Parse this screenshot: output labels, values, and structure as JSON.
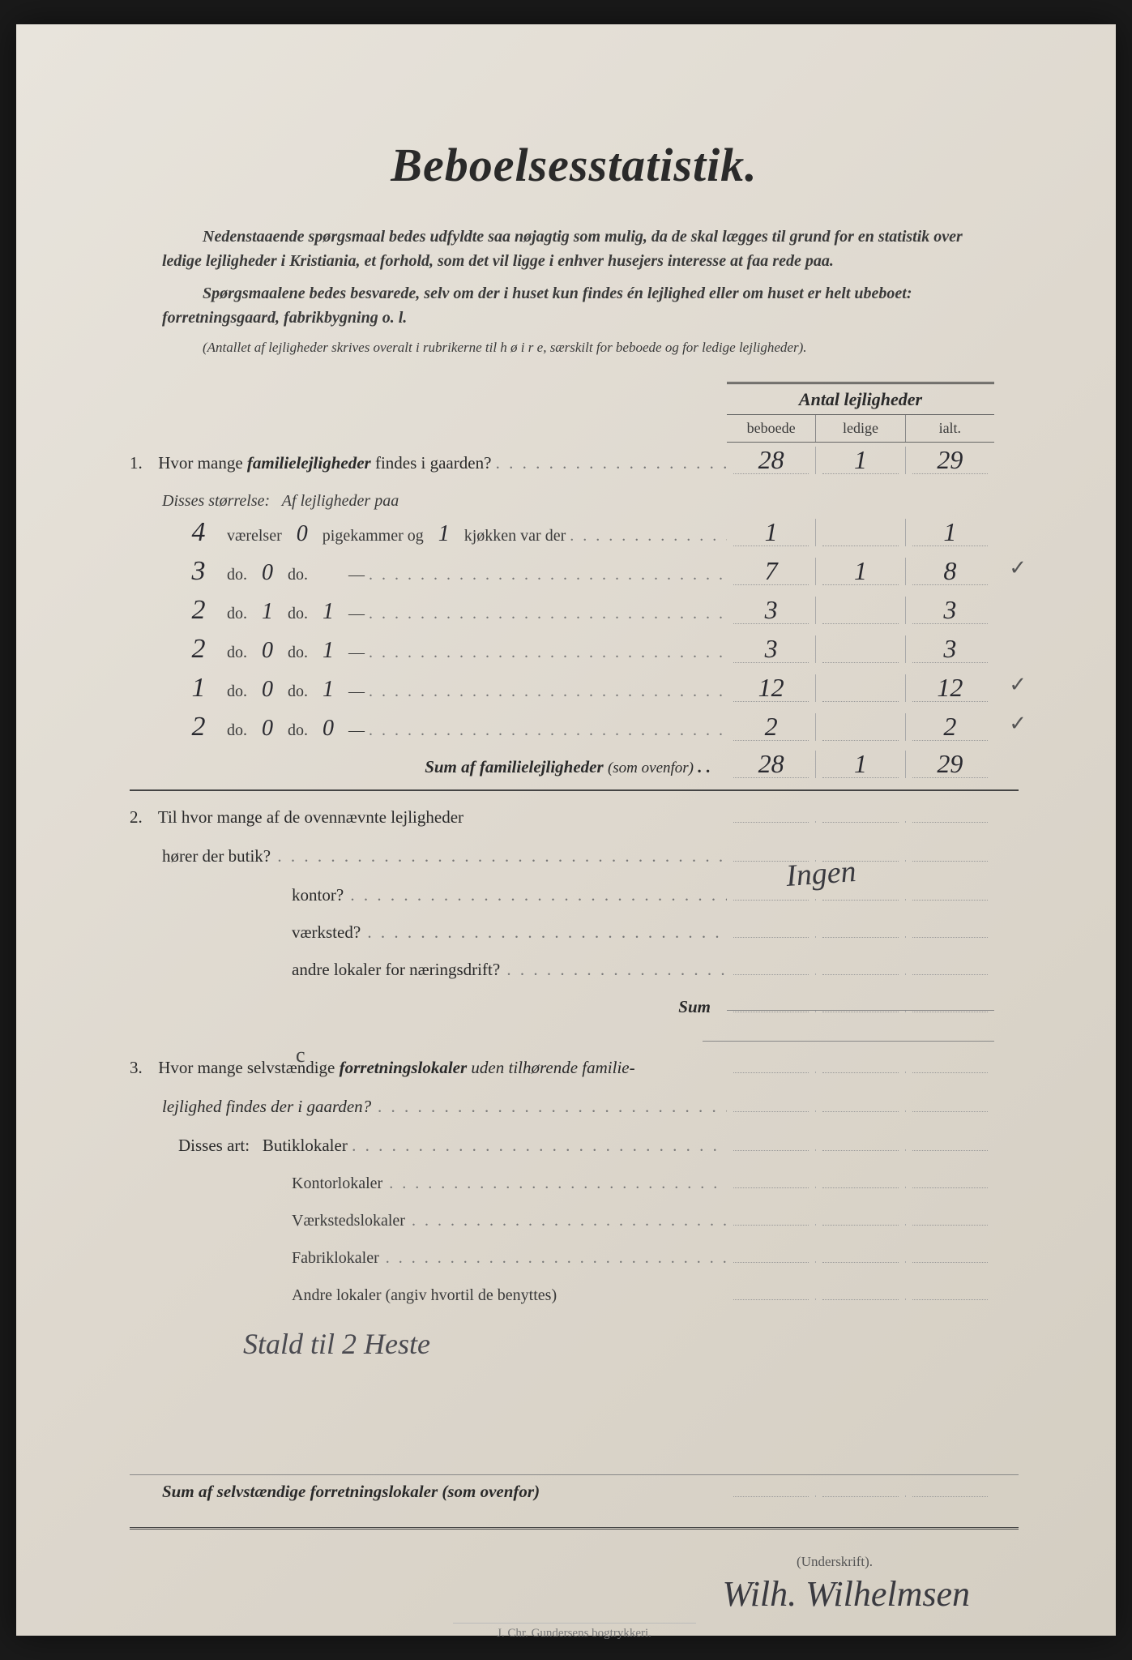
{
  "title": "Beboelsesstatistik.",
  "intro1": "Nedenstaaende spørgsmaal bedes udfyldte saa nøjagtig som mulig, da de skal lægges til grund for en statistik over ledige lejligheder i Kristiania, et forhold, som det vil ligge i enhver husejers interesse at faa rede paa.",
  "intro2": "Spørgsmaalene bedes besvarede, selv om der i huset kun findes én lejlighed eller om huset er helt ubeboet: forretningsgaard, fabrikbygning o. l.",
  "intro3": "(Antallet af lejligheder skrives overalt i rubrikerne til h ø i r e, særskilt for beboede og for ledige lejligheder).",
  "header": {
    "title": "Antal lejligheder",
    "cols": [
      "beboede",
      "ledige",
      "ialt."
    ]
  },
  "q1": {
    "label": "Hvor mange",
    "label_bold": "familielejligheder",
    "label_after": "findes i gaarden?",
    "vals": [
      "28",
      "1",
      "29"
    ],
    "disses": "Disses størrelse:",
    "af_lej": "Af lejligheder paa"
  },
  "rooms": [
    {
      "v": "4",
      "text_1": "værelser",
      "p": "0",
      "text_2": "pigekammer og",
      "k": "1",
      "text_3": "kjøkken var der",
      "vals": [
        "1",
        "",
        "1"
      ],
      "check": ""
    },
    {
      "v": "3",
      "text_1": "do.",
      "p": "0",
      "text_2": "do.",
      "k": "",
      "text_3": "—",
      "vals": [
        "7",
        "1",
        "8"
      ],
      "check": "✓"
    },
    {
      "v": "2",
      "text_1": "do.",
      "p": "1",
      "text_2": "do.",
      "k": "1",
      "text_3": "—",
      "vals": [
        "3",
        "",
        "3"
      ],
      "check": ""
    },
    {
      "v": "2",
      "text_1": "do.",
      "p": "0",
      "text_2": "do.",
      "k": "1",
      "text_3": "—",
      "vals": [
        "3",
        "",
        "3"
      ],
      "check": ""
    },
    {
      "v": "1",
      "text_1": "do.",
      "p": "0",
      "text_2": "do.",
      "k": "1",
      "text_3": "—",
      "vals": [
        "12",
        "",
        "12"
      ],
      "check": "✓"
    },
    {
      "v": "2",
      "text_1": "do.",
      "p": "0",
      "text_2": "do.",
      "k": "0",
      "text_3": "—",
      "vals": [
        "2",
        "",
        "2"
      ],
      "check": "✓"
    }
  ],
  "sum1": {
    "label": "Sum af familielejligheder",
    "paren": "(som ovenfor)",
    "vals": [
      "28",
      "1",
      "29"
    ]
  },
  "q2": {
    "line1": "Til hvor mange af de ovennævnte lejligheder",
    "line2": "hører der butik?",
    "items": [
      "kontor?",
      "værksted?",
      "andre lokaler for næringsdrift?"
    ],
    "sum": "Sum",
    "note": "Ingen"
  },
  "q3": {
    "line1a": "Hvor mange selvstændige",
    "line1b": "forretningslokaler",
    "line1c": "uden tilhørende familie-",
    "line2": "lejlighed findes der i gaarden?",
    "disses": "Disses art:",
    "items": [
      "Butiklokaler",
      "Kontorlokaler",
      "Værkstedslokaler",
      "Fabriklokaler"
    ],
    "andre": "Andre lokaler (angiv hvortil de benyttes)",
    "handwritten": "Stald til 2 Heste",
    "c_annotation": "c"
  },
  "footer_sum": "Sum af selvstændige forretningslokaler (som ovenfor)",
  "underskrift": "(Underskrift).",
  "signature": "Wilh. Wilhelmsen",
  "printer": "J. Chr. Gundersens bogtrykkeri.",
  "colors": {
    "page_bg": "#e8e4dc",
    "text": "#2a2a2a",
    "handwriting": "#2a2a30",
    "border": "#444"
  }
}
